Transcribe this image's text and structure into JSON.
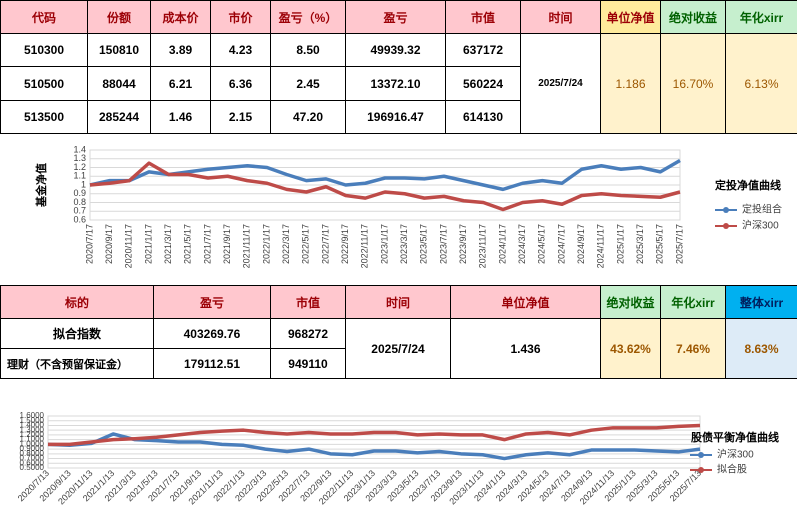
{
  "table1": {
    "headers": [
      "代码",
      "份额",
      "成本价",
      "市价",
      "盈亏（%）",
      "盈亏",
      "市值",
      "时间",
      "单位净值",
      "绝对收益",
      "年化xirr"
    ],
    "rows": [
      [
        "510300",
        "150810",
        "3.89",
        "4.23",
        "8.50",
        "49939.32",
        "637172"
      ],
      [
        "510500",
        "88044",
        "6.21",
        "6.36",
        "2.45",
        "13372.10",
        "560224"
      ],
      [
        "513500",
        "285244",
        "1.46",
        "2.15",
        "47.20",
        "196916.47",
        "614130"
      ]
    ],
    "time": "2025/7/24",
    "nav": "1.186",
    "abs_return": "16.70%",
    "xirr": "6.13%"
  },
  "table2": {
    "headers": [
      "标的",
      "盈亏",
      "市值",
      "时间",
      "单位净值",
      "绝对收益",
      "年化xirr",
      "整体xirr"
    ],
    "rows": [
      [
        "拟合指数",
        "403269.76",
        "968272"
      ],
      [
        "理财（不含预留保证金）",
        "179112.51",
        "949110"
      ]
    ],
    "time": "2025/7/24",
    "nav": "1.436",
    "abs_return": "43.62%",
    "xirr": "7.46%",
    "overall_xirr": "8.63%"
  },
  "chart_data": [
    {
      "type": "line",
      "title": "定投净值曲线",
      "y_label": "基金净值",
      "categories": [
        "2020/7/17",
        "2020/9/17",
        "2020/11/17",
        "2021/1/17",
        "2021/3/17",
        "2021/5/17",
        "2021/7/17",
        "2021/9/17",
        "2021/11/17",
        "2022/1/17",
        "2022/3/17",
        "2022/5/17",
        "2022/7/17",
        "2022/9/17",
        "2022/11/17",
        "2023/1/17",
        "2023/3/17",
        "2023/5/17",
        "2023/7/17",
        "2023/9/17",
        "2023/11/17",
        "2024/1/17",
        "2024/3/17",
        "2024/5/17",
        "2024/7/17",
        "2024/9/17",
        "2024/11/17",
        "2025/1/17",
        "2025/3/17",
        "2025/5/17",
        "2025/7/17"
      ],
      "series": [
        {
          "name": "定投组合",
          "color": "#4a7ebb",
          "values": [
            1.0,
            1.05,
            1.05,
            1.15,
            1.12,
            1.15,
            1.18,
            1.2,
            1.22,
            1.2,
            1.12,
            1.05,
            1.07,
            1.0,
            1.02,
            1.08,
            1.08,
            1.07,
            1.1,
            1.05,
            1.0,
            0.95,
            1.02,
            1.05,
            1.02,
            1.18,
            1.22,
            1.18,
            1.2,
            1.15,
            1.28
          ]
        },
        {
          "name": "沪深300",
          "color": "#be4b48",
          "values": [
            1.0,
            1.02,
            1.05,
            1.25,
            1.12,
            1.12,
            1.08,
            1.1,
            1.05,
            1.02,
            0.95,
            0.92,
            0.98,
            0.88,
            0.85,
            0.92,
            0.9,
            0.85,
            0.87,
            0.82,
            0.8,
            0.72,
            0.8,
            0.82,
            0.78,
            0.88,
            0.9,
            0.88,
            0.87,
            0.86,
            0.92
          ]
        }
      ],
      "ylim": [
        0.6,
        1.4
      ],
      "yticks": [
        0.6,
        0.7,
        0.8,
        0.9,
        1,
        1.1,
        1.2,
        1.3,
        1.4
      ],
      "grid": true,
      "legend": "right"
    },
    {
      "type": "line",
      "title": "股债平衡净值曲线",
      "categories": [
        "2020/7/13",
        "2020/9/13",
        "2020/11/13",
        "2021/1/13",
        "2021/3/13",
        "2021/5/13",
        "2021/7/13",
        "2021/9/13",
        "2021/11/13",
        "2022/1/13",
        "2022/3/13",
        "2022/5/13",
        "2022/7/13",
        "2022/9/13",
        "2022/11/13",
        "2023/1/13",
        "2023/3/13",
        "2023/5/13",
        "2023/7/13",
        "2023/9/13",
        "2023/11/13",
        "2024/1/13",
        "2024/3/13",
        "2024/5/13",
        "2024/7/13",
        "2024/9/13",
        "2024/11/13",
        "2025/1/13",
        "2025/3/13",
        "2025/5/13",
        "2025/7/13"
      ],
      "series": [
        {
          "name": "沪深300",
          "color": "#4a7ebb",
          "values": [
            1.0,
            0.98,
            1.02,
            1.22,
            1.1,
            1.08,
            1.05,
            1.05,
            1.0,
            0.98,
            0.9,
            0.85,
            0.9,
            0.8,
            0.78,
            0.86,
            0.86,
            0.82,
            0.85,
            0.8,
            0.78,
            0.7,
            0.78,
            0.82,
            0.78,
            0.88,
            0.88,
            0.88,
            0.86,
            0.84,
            0.9
          ]
        },
        {
          "name": "拟合股",
          "color": "#be4b48",
          "values": [
            1.0,
            1.0,
            1.05,
            1.1,
            1.12,
            1.15,
            1.2,
            1.25,
            1.28,
            1.3,
            1.25,
            1.22,
            1.25,
            1.22,
            1.22,
            1.25,
            1.25,
            1.2,
            1.22,
            1.2,
            1.2,
            1.1,
            1.22,
            1.25,
            1.2,
            1.3,
            1.35,
            1.35,
            1.35,
            1.38,
            1.4
          ]
        }
      ],
      "ylim": [
        0.5,
        1.6
      ],
      "yticks": [
        {
          "value": 0.5,
          "label": "0.5000"
        },
        {
          "value": 0.6,
          "label": "0.6000"
        },
        {
          "value": 0.7,
          "label": "0.7000"
        },
        {
          "value": 0.8,
          "label": "0.8000"
        },
        {
          "value": 0.9,
          "label": "0.9000"
        },
        {
          "value": 1.0,
          "label": "1.0000"
        },
        {
          "value": 1.1,
          "label": "1.1000"
        },
        {
          "value": 1.2,
          "label": "1.2000"
        },
        {
          "value": 1.3,
          "label": "1.3000"
        },
        {
          "value": 1.4,
          "label": "1.4000"
        },
        {
          "value": 1.5,
          "label": "1.5000"
        },
        {
          "value": 1.6,
          "label": "1.6000"
        }
      ],
      "grid": true,
      "legend": "right"
    }
  ]
}
